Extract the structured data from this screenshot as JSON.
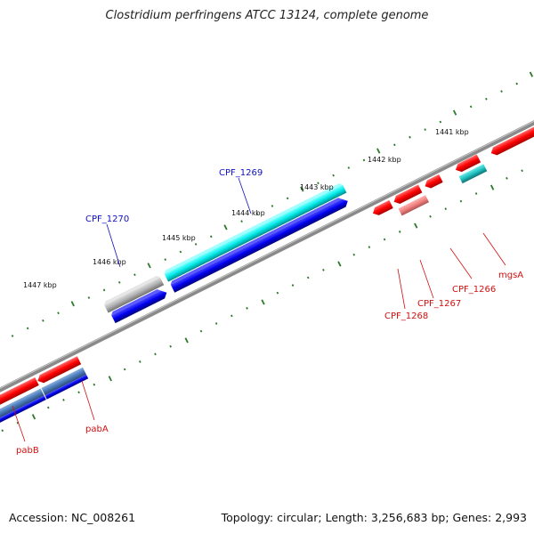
{
  "title": "Clostridium perfringens ATCC 13124, complete genome",
  "footer": {
    "accession": "Accession: NC_008261",
    "summary": "Topology: circular; Length: 3,256,683 bp; Genes: 2,993"
  },
  "colors": {
    "backbone": "#808080",
    "forward_strand_label": "#1010c0",
    "reverse_strand_label": "#d01010",
    "tick": "#2a7a2a",
    "red": "#ff0000",
    "blue": "#0000ee",
    "cyan": "#00e0e0",
    "light_red": "#f08080",
    "gray": "#b0b0b0",
    "steel_blue": "#4a7ab8",
    "teal": "#20c0c0"
  },
  "ticks": [
    {
      "label": "1441 kbp"
    },
    {
      "label": "1442 kbp"
    },
    {
      "label": "1443 kbp"
    },
    {
      "label": "1444 kbp"
    },
    {
      "label": "1445 kbp"
    },
    {
      "label": "1446 kbp"
    },
    {
      "label": "1447 kbp"
    }
  ],
  "gene_labels": [
    {
      "name": "CPF_1269",
      "strand": "forward"
    },
    {
      "name": "CPF_1270",
      "strand": "forward"
    },
    {
      "name": "mgsA",
      "strand": "reverse"
    },
    {
      "name": "CPF_1266",
      "strand": "reverse"
    },
    {
      "name": "CPF_1267",
      "strand": "reverse"
    },
    {
      "name": "CPF_1268",
      "strand": "reverse"
    },
    {
      "name": "pabA",
      "strand": "reverse"
    },
    {
      "name": "pabB",
      "strand": "reverse"
    }
  ]
}
